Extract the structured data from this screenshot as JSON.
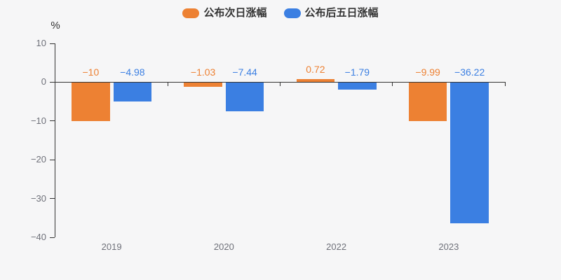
{
  "chart_data": {
    "type": "bar",
    "title": "",
    "unit_label": "%",
    "categories": [
      "2019",
      "2020",
      "2022",
      "2023"
    ],
    "series": [
      {
        "name": "公布次日涨幅",
        "color": "#ED8133",
        "values": [
          -10,
          -1.03,
          0.72,
          -9.99
        ],
        "labels": [
          "−10",
          "−1.03",
          "0.72",
          "−9.99"
        ]
      },
      {
        "name": "公布后五日涨幅",
        "color": "#3B7FE2",
        "values": [
          -4.98,
          -7.44,
          -1.79,
          -36.22
        ],
        "labels": [
          "−4.98",
          "−7.44",
          "−1.79",
          "−36.22"
        ]
      }
    ],
    "ylim": [
      -40,
      10
    ],
    "yticks": [
      {
        "value": 10,
        "label": "10"
      },
      {
        "value": 0,
        "label": "0"
      },
      {
        "value": -10,
        "label": "−10"
      },
      {
        "value": -20,
        "label": "−20"
      },
      {
        "value": -30,
        "label": "−30"
      },
      {
        "value": -40,
        "label": "−40"
      }
    ],
    "legend_position": "top-center",
    "grid": "off",
    "xlabel": "",
    "ylabel": "%"
  },
  "colors": {
    "background": "#F6F6F7",
    "axis": "#333333",
    "tick_label": "#6E7079",
    "legend_text": "#333333",
    "unit_text": "#333333"
  }
}
